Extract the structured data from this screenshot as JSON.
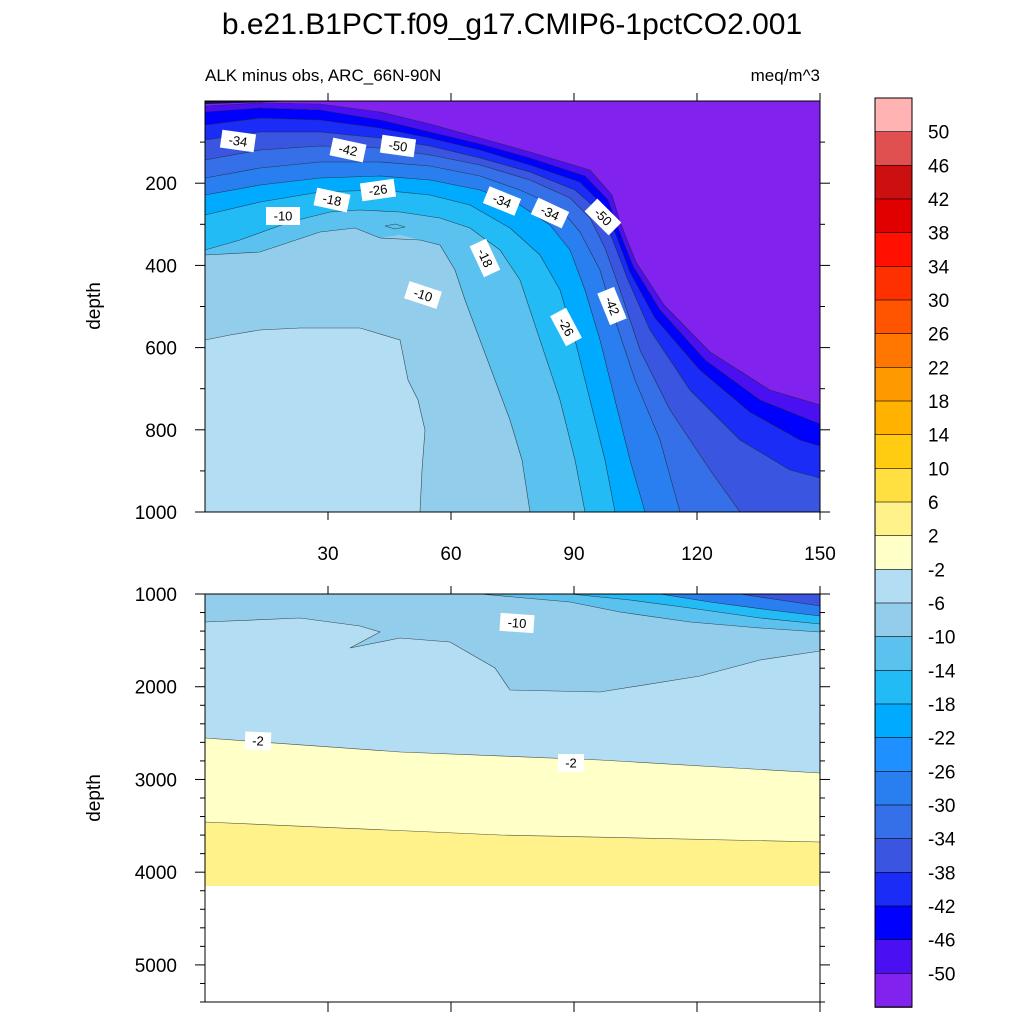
{
  "title": "b.e21.B1PCT.f09_g17.CMIP6-1pctCO2.001",
  "subtitle_left": "ALK minus obs, ARC_66N-90N",
  "subtitle_right": "meq/m^3",
  "chart_data": {
    "type": "filled-contour",
    "panels": [
      {
        "name": "upper",
        "ylabel": "depth",
        "ylim": [
          1000,
          0
        ],
        "xlim": [
          0,
          150
        ],
        "yticks": [
          200,
          400,
          600,
          800,
          1000
        ],
        "ytick_labels": [
          "200",
          "400",
          "600",
          "800",
          "1000"
        ],
        "xticks": [
          30,
          60,
          90,
          120,
          150
        ],
        "xtick_labels": [
          "30",
          "60",
          "90",
          "120",
          "150"
        ],
        "contour_labels": [
          "-34",
          "-42",
          "-50",
          "-26",
          "-18",
          "-10",
          "-34",
          "-34",
          "-50",
          "-18",
          "-10",
          "-42",
          "-26"
        ]
      },
      {
        "name": "lower",
        "ylabel": "depth",
        "ylim": [
          1000,
          5400
        ],
        "xlim": [
          0,
          150
        ],
        "yticks": [
          1000,
          2000,
          3000,
          4000,
          5000
        ],
        "ytick_labels": [
          "1000",
          "2000",
          "3000",
          "4000",
          "5000"
        ],
        "contour_labels": [
          "-10",
          "-2",
          "-2"
        ]
      }
    ],
    "colorbar": {
      "levels": [
        "50",
        "46",
        "42",
        "38",
        "34",
        "30",
        "26",
        "22",
        "18",
        "14",
        "10",
        "6",
        "2",
        "-2",
        "-6",
        "-10",
        "-14",
        "-18",
        "-22",
        "-26",
        "-30",
        "-34",
        "-38",
        "-42",
        "-46",
        "-50"
      ],
      "colors": [
        "#ffb3b3",
        "#e05050",
        "#cc1010",
        "#e00000",
        "#ff1000",
        "#ff3000",
        "#ff5500",
        "#ff7700",
        "#ff9900",
        "#ffb300",
        "#ffcc11",
        "#ffe040",
        "#fff28a",
        "#ffffc8",
        "#b3ddf2",
        "#93cdec",
        "#5bc2f0",
        "#22bbf5",
        "#00aaff",
        "#1e90ff",
        "#2a7ff0",
        "#3570e8",
        "#3a55e0",
        "#1a2cf5",
        "#0000ff",
        "#4b10f2",
        "#8222ee"
      ]
    }
  }
}
